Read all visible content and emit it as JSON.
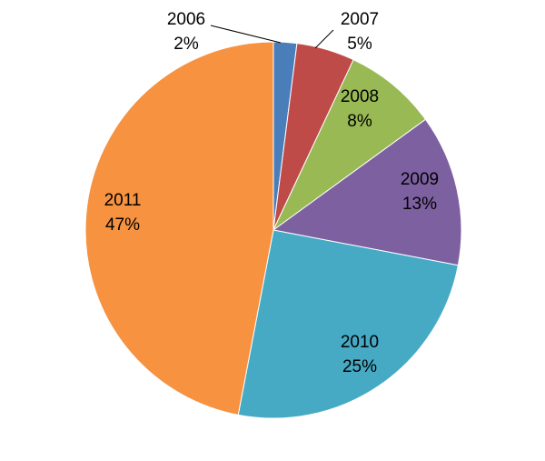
{
  "chart_data": {
    "type": "pie",
    "title": "",
    "categories": [
      "2006",
      "2007",
      "2008",
      "2009",
      "2010",
      "2011"
    ],
    "values": [
      2,
      5,
      8,
      13,
      25,
      47
    ],
    "percent_labels": [
      "2%",
      "5%",
      "8%",
      "13%",
      "25%",
      "47%"
    ],
    "colors": [
      "#4a7ebb",
      "#be4b48",
      "#98b954",
      "#7d60a0",
      "#46aac5",
      "#f69240"
    ],
    "legend": "none",
    "start_angle": "12 o'clock",
    "direction": "clockwise"
  }
}
